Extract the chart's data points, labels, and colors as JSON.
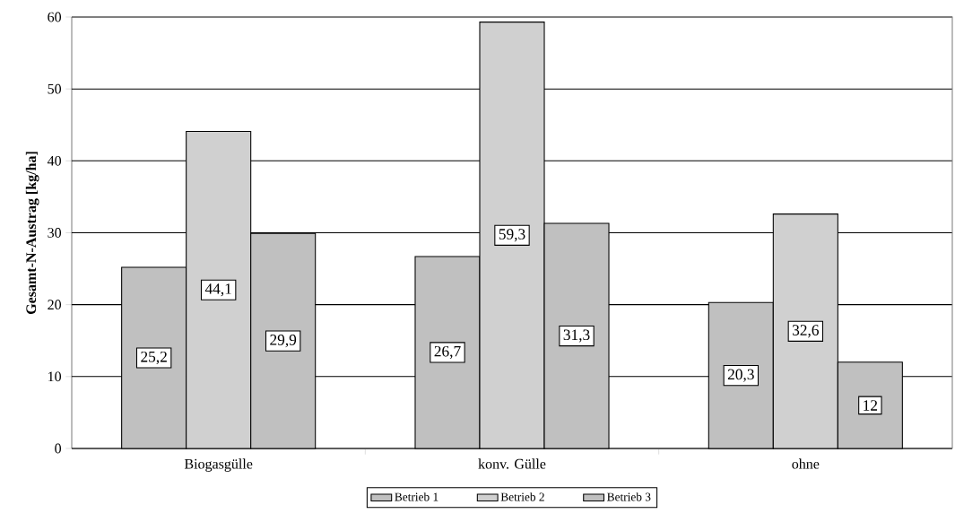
{
  "chart_data": {
    "type": "bar",
    "ylabel": "Gesamt-N-Austrag [kg/ha]",
    "categories": [
      "Biogasgülle",
      "konv. Gülle",
      "ohne"
    ],
    "series": [
      {
        "name": "Betrieb 1",
        "color": "#c0c0c0",
        "values": [
          25.2,
          26.7,
          20.3
        ],
        "value_labels": [
          "25,2",
          "26,7",
          "20,3"
        ]
      },
      {
        "name": "Betrieb 2",
        "color": "#d0d0d0",
        "values": [
          44.1,
          59.3,
          32.6
        ],
        "value_labels": [
          "44,1",
          "59,3",
          "32,6"
        ]
      },
      {
        "name": "Betrieb 3",
        "color": "#c0c0c0",
        "values": [
          29.9,
          31.3,
          12
        ],
        "value_labels": [
          "29,9",
          "31,3",
          "12"
        ]
      }
    ],
    "ylim": [
      0,
      60
    ],
    "yticks": [
      0,
      10,
      20,
      30,
      40,
      50,
      60
    ],
    "grid": "y",
    "legend": "bottom"
  }
}
